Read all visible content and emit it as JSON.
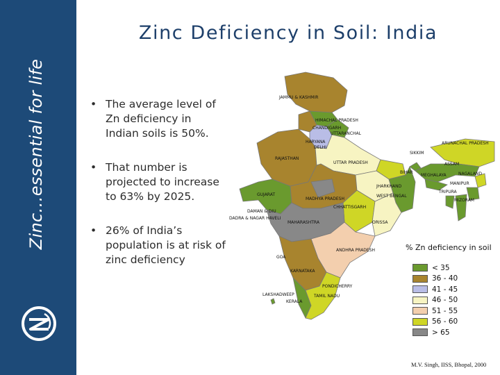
{
  "sidebar": {
    "tagline": "Zinc…essential for life"
  },
  "slide": {
    "title": "Zinc Deficiency in Soil: India",
    "bullets": [
      "The average level of Zn deficiency in Indian soils is 50%.",
      "That number is projected to increase to 63% by 2025.",
      "26% of India’s population is at risk of zinc deficiency"
    ]
  },
  "map": {
    "labels": {
      "jk": "JAMMU & KASHMIR",
      "hp": "HIMACHAL PRADESH",
      "chd": "CHANDIGARH",
      "uk": "UTTARANCHAL",
      "hr": "HARYANA",
      "dl": "DELHI",
      "rj": "RAJASTHAN",
      "up": "UTTAR PRADESH",
      "gj": "GUJARAT",
      "mp": "MADHYA PRADESH",
      "jh": "JHARKHAND",
      "br": "BIHAR",
      "wb": "WEST BENGAL",
      "sk": "SIKKIM",
      "ar": "ARUNACHAL PRADESH",
      "as": "ASSAM",
      "nl": "NAGALAND",
      "ml": "MEGHALAYA",
      "mn": "MANIPUR",
      "tr": "TRIPURA",
      "mz": "MIZORAM",
      "cg": "CHHATTISGARH",
      "or": "ORISSA",
      "mh": "MAHARASHTRA",
      "dd": "DAMAN & DIU",
      "dnh": "DADRA & NAGAR HAVELI",
      "ap": "ANDHRA PRADESH",
      "ga": "GOA",
      "ka": "KARNATAKA",
      "py": "PONDICHERRY",
      "tn": "TAMIL NADU",
      "ld": "LAKSHADWEEP",
      "kl": "KERALA"
    }
  },
  "legend": {
    "title": "% Zn deficiency in soil",
    "items": [
      {
        "label": "< 35",
        "color": "#6a9a2e"
      },
      {
        "label": "36 - 40",
        "color": "#a8842e"
      },
      {
        "label": "41 - 45",
        "color": "#b9bde6"
      },
      {
        "label": "46 - 50",
        "color": "#f7f4c2"
      },
      {
        "label": "51 - 55",
        "color": "#f3cfae"
      },
      {
        "label": "56 - 60",
        "color": "#cfd626"
      },
      {
        "label": "> 65",
        "color": "#888888"
      }
    ]
  },
  "source": "M.V. Singh, IISS, Bhopal, 2000",
  "colors": {
    "sidebar": "#1d4a78",
    "title": "#1d3f6a"
  }
}
